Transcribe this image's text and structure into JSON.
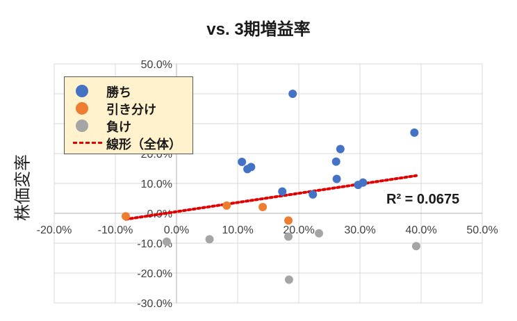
{
  "chart_data": {
    "type": "scatter",
    "title": "vs. 3期増益率",
    "ylabel": "株価変率",
    "xlabel": "",
    "xlim": [
      -0.2,
      0.5
    ],
    "ylim": [
      -0.3,
      0.5
    ],
    "x_ticks": [
      -0.2,
      -0.1,
      0.0,
      0.1,
      0.2,
      0.3,
      0.4,
      0.5
    ],
    "y_ticks": [
      -0.3,
      -0.2,
      -0.1,
      0.0,
      0.1,
      0.2,
      0.3,
      0.4,
      0.5
    ],
    "x_tick_labels": [
      "-20.0%",
      "-10.0%",
      "0.0%",
      "10.0%",
      "20.0%",
      "30.0%",
      "40.0%",
      "50.0%"
    ],
    "y_tick_labels": [
      "-30.0%",
      "-20.0%",
      "-10.0%",
      "0.0%",
      "10.0%",
      "20.0%",
      "30.0%",
      "40.0%",
      "50.0%"
    ],
    "grid": true,
    "legend_position": "top-left",
    "series": [
      {
        "name": "勝ち",
        "color": "#4472c4",
        "points": [
          [
            0.19,
            0.4
          ],
          [
            0.389,
            0.27
          ],
          [
            0.268,
            0.215
          ],
          [
            0.107,
            0.172
          ],
          [
            0.261,
            0.173
          ],
          [
            0.122,
            0.155
          ],
          [
            0.116,
            0.148
          ],
          [
            0.262,
            0.115
          ],
          [
            0.305,
            0.103
          ],
          [
            0.297,
            0.095
          ],
          [
            0.173,
            0.073
          ],
          [
            0.223,
            0.063
          ]
        ]
      },
      {
        "name": "引き分け",
        "color": "#ed7d31",
        "points": [
          [
            -0.083,
            -0.01
          ],
          [
            0.082,
            0.026
          ],
          [
            0.141,
            0.021
          ],
          [
            0.183,
            -0.024
          ]
        ]
      },
      {
        "name": "負け",
        "color": "#a5a5a5",
        "points": [
          [
            -0.016,
            -0.095
          ],
          [
            0.054,
            -0.087
          ],
          [
            0.183,
            -0.078
          ],
          [
            0.233,
            -0.067
          ],
          [
            0.392,
            -0.11
          ],
          [
            0.184,
            -0.222
          ]
        ]
      }
    ],
    "trendline": {
      "name": "線形（全体）",
      "color": "#e00000",
      "x_range": [
        -0.083,
        0.392
      ],
      "y_range": [
        -0.02,
        0.126
      ]
    },
    "annotation": "R² = 0.0675"
  }
}
